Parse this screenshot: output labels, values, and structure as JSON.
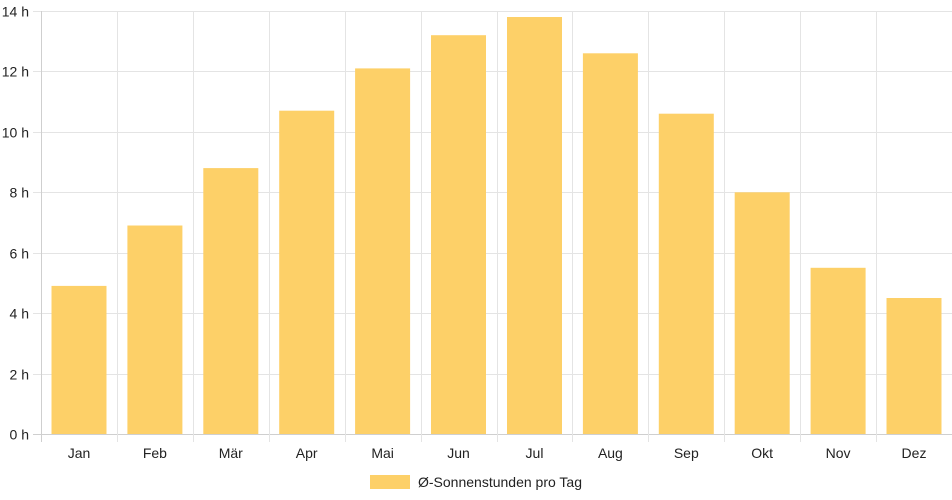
{
  "chart_data": {
    "type": "bar",
    "categories": [
      "Jan",
      "Feb",
      "Mär",
      "Apr",
      "Mai",
      "Jun",
      "Jul",
      "Aug",
      "Sep",
      "Okt",
      "Nov",
      "Dez"
    ],
    "series": [
      {
        "name": "Ø-Sonnenstunden pro Tag",
        "values": [
          4.9,
          6.9,
          8.8,
          10.7,
          12.1,
          13.2,
          13.8,
          12.6,
          10.6,
          8.0,
          5.5,
          4.5
        ],
        "color": "#fdd068"
      }
    ],
    "ylim": [
      0,
      14
    ],
    "y_ticks": [
      0,
      2,
      4,
      6,
      8,
      10,
      12,
      14
    ],
    "y_tick_suffix": " h",
    "grid": true,
    "legend_position": "bottom"
  },
  "colors": {
    "grid": "#e4e4e4",
    "axis": "#cfcfcf",
    "text": "#222222"
  }
}
